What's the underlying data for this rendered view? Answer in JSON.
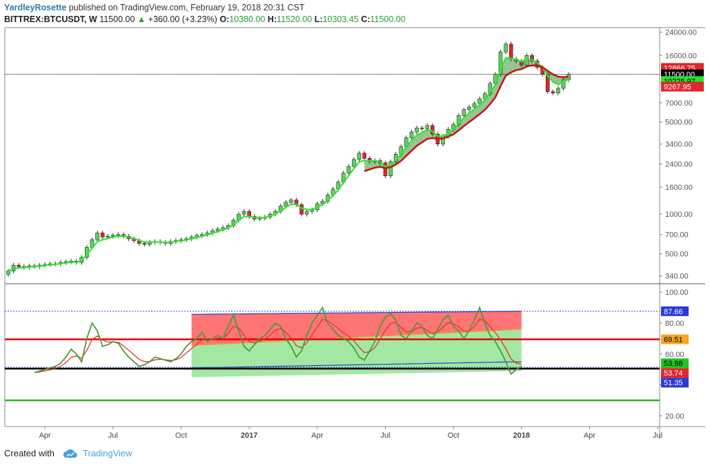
{
  "header": {
    "author": "YardleyRosette",
    "published_text": "published on TradingView.com, February 19, 2018 20:31 CST"
  },
  "symbol_line": {
    "symbol": "BITTREX:BTCUSDT, W",
    "last": "11500.00",
    "change": "+360.00 (+3.23%)",
    "open_label": "O:",
    "open": "10380.00",
    "high_label": "H:",
    "high": "11520.00",
    "low_label": "L:",
    "low": "10303.45",
    "close_label": "C:",
    "close": "11500.00"
  },
  "footer": {
    "created_with": "Created with",
    "brand": "TradingView"
  },
  "colors": {
    "up": "#5fd35f",
    "down": "#e0262f",
    "ema_fast": "#2ee82e",
    "ema_slow": "#c8151b",
    "fill": "#4f9e4f",
    "rsi": "#4a9a3a",
    "rsi_sig": "#e2322f",
    "band_red": "#ff5c5c",
    "band_green": "#98e698",
    "line_red": "#e60000",
    "line_green": "#22bb22",
    "blue": "#2a3bd6",
    "axis_text": "#555555"
  },
  "chart_data": [
    {
      "type": "candlestick",
      "title": "BITTREX:BTCUSDT, W",
      "yscale": "log",
      "ylim": [
        300,
        26000
      ],
      "x_ticks": [
        {
          "w": 7,
          "label": "Apr",
          "bold": false
        },
        {
          "w": 20,
          "label": "Jul",
          "bold": false
        },
        {
          "w": 33,
          "label": "Oct",
          "bold": false
        },
        {
          "w": 46,
          "label": "2017",
          "bold": true
        },
        {
          "w": 59,
          "label": "Apr",
          "bold": false
        },
        {
          "w": 72,
          "label": "Jul",
          "bold": false
        },
        {
          "w": 85,
          "label": "Oct",
          "bold": false
        },
        {
          "w": 98,
          "label": "2018",
          "bold": true
        },
        {
          "w": 111,
          "label": "Apr",
          "bold": false
        },
        {
          "w": 124,
          "label": "Jul",
          "bold": false
        }
      ],
      "y_ticks": [
        340,
        500,
        700,
        1000,
        1600,
        2400,
        3400,
        5000,
        7000,
        10000,
        16000,
        24000
      ],
      "y_tick_labels": [
        "340.00",
        "500.00",
        "700.00",
        "1000.00",
        "1600.00",
        "2400.00",
        "3400.00",
        "5000.00",
        "7000.00",
        "10000.00",
        "16000.00",
        "24000.00"
      ],
      "closes": [
        370,
        410,
        400,
        395,
        405,
        400,
        410,
        415,
        420,
        420,
        430,
        435,
        440,
        430,
        470,
        560,
        640,
        720,
        670,
        680,
        690,
        700,
        680,
        650,
        630,
        600,
        590,
        610,
        620,
        610,
        600,
        620,
        630,
        640,
        650,
        670,
        690,
        700,
        720,
        750,
        770,
        790,
        820,
        900,
        1000,
        1050,
        960,
        920,
        930,
        950,
        1000,
        1050,
        1150,
        1230,
        1280,
        1180,
        1000,
        1050,
        1080,
        1200,
        1250,
        1400,
        1550,
        1750,
        2050,
        2300,
        2600,
        2900,
        2650,
        2500,
        2550,
        2450,
        1950,
        2500,
        2850,
        3250,
        3800,
        4200,
        4500,
        4450,
        4700,
        4050,
        3400,
        3900,
        4400,
        4800,
        5600,
        6200,
        6500,
        6900,
        7500,
        8200,
        9800,
        11500,
        17000,
        19500,
        15000,
        14500,
        13500,
        16000,
        14500,
        13000,
        11500,
        8500,
        8300,
        9000,
        10500,
        11500
      ],
      "opens_first": 350,
      "ema_fast_from": 0,
      "ema_slow_from": 68,
      "price_labels": [
        {
          "value": 12866.75,
          "text": "12866.75",
          "bg": "#e0262f",
          "fg": "#ffffff"
        },
        {
          "value": 11500.0,
          "text": "11500.00",
          "bg": "#000000",
          "fg": "#ffffff"
        },
        {
          "value": 10225.97,
          "text": "10225.97",
          "bg": "#29e229",
          "fg": "#000000"
        },
        {
          "value": 9267.95,
          "text": "9267.95",
          "bg": "#e0262f",
          "fg": "#ffffff"
        }
      ]
    },
    {
      "type": "oscillator",
      "ylim": [
        13,
        105
      ],
      "y_ticks": [
        20,
        40,
        60,
        80,
        100
      ],
      "y_tick_labels": [
        "20.00",
        "40.00",
        "60.00",
        "80.00",
        "100.00"
      ],
      "upper_dotted": 87.66,
      "lower_dotted": 51.35,
      "red_line": 69.51,
      "black_line": 50.5,
      "green_line": 30.0,
      "rsi_start": 5,
      "rsi": [
        48,
        49,
        50,
        51,
        52,
        54,
        58,
        63,
        60,
        55,
        70,
        80,
        75,
        65,
        66,
        68,
        67,
        62,
        58,
        55,
        52,
        53,
        55,
        58,
        57,
        56,
        55,
        57,
        60,
        65,
        68,
        70,
        74,
        68,
        70,
        72,
        70,
        78,
        85,
        75,
        65,
        62,
        66,
        70,
        72,
        76,
        80,
        78,
        70,
        65,
        58,
        62,
        72,
        80,
        85,
        90,
        80,
        76,
        72,
        70,
        68,
        64,
        58,
        56,
        62,
        68,
        78,
        84,
        86,
        82,
        72,
        70,
        75,
        80,
        78,
        72,
        70,
        76,
        82,
        85,
        78,
        75,
        70,
        75,
        82,
        90,
        80,
        72,
        68,
        62,
        55,
        47,
        50,
        52
      ],
      "band_start": 35,
      "band_end": 98,
      "band_top_start": 71,
      "band_top_end": 88,
      "band_bot_start": 48,
      "band_bot_end": 52,
      "value_labels": [
        {
          "value": 87.66,
          "text": "87.66",
          "bg": "#2a3bd6",
          "fg": "#ffffff"
        },
        {
          "value": 69.51,
          "text": "69.51",
          "bg": "#f5a623",
          "fg": "#000000"
        },
        {
          "value": 53.98,
          "text": "53.98",
          "bg": "#22c322",
          "fg": "#000000"
        },
        {
          "value": 53.74,
          "text": "53.74",
          "bg": "#e0262f",
          "fg": "#ffffff"
        },
        {
          "value": 51.35,
          "text": "51.35",
          "bg": "#2a3bd6",
          "fg": "#ffffff"
        }
      ]
    }
  ]
}
